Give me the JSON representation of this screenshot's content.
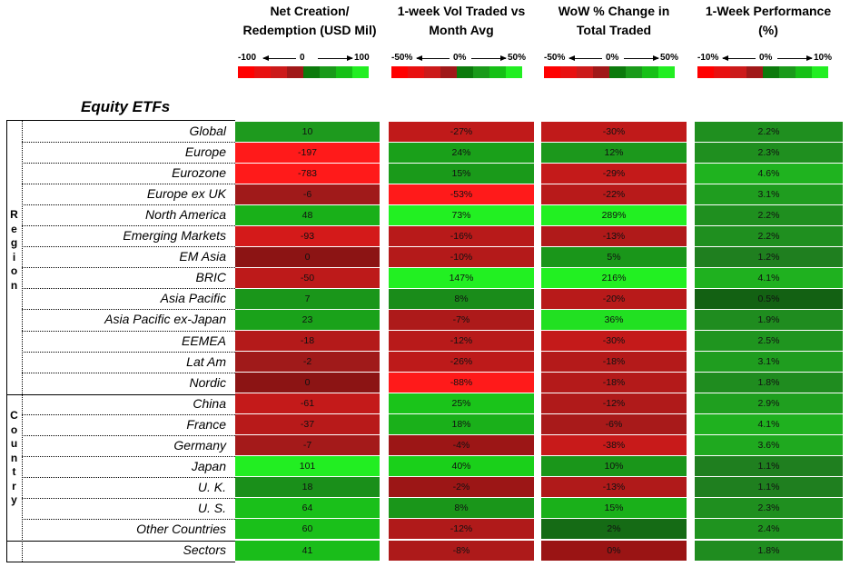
{
  "columns": [
    {
      "header_line1": "Net Creation/",
      "header_line2": "Redemption (USD Mil)",
      "legend_left": "-100",
      "legend_mid": "0",
      "legend_right": "100"
    },
    {
      "header_line1": "1-week Vol Traded vs",
      "header_line2": "Month Avg",
      "legend_left": "-50%",
      "legend_mid": "0%",
      "legend_right": "50%"
    },
    {
      "header_line1": "WoW % Change in",
      "header_line2": "Total Traded",
      "legend_left": "-50%",
      "legend_mid": "0%",
      "legend_right": "50%"
    },
    {
      "header_line1": "1-Week Performance",
      "header_line2": "(%)",
      "legend_left": "-10%",
      "legend_mid": "0%",
      "legend_right": "10%"
    }
  ],
  "legend_scale": [
    "#ff0000",
    "#e81010",
    "#cc1a1a",
    "#a01818",
    "#0c7a0c",
    "#1a9a1a",
    "#16c016",
    "#22ee22"
  ],
  "section_title": "Equity ETFs",
  "groups": [
    {
      "label_letters": [
        "R",
        "e",
        "g",
        "i",
        "o",
        "n"
      ]
    },
    {
      "label_letters": [
        "C",
        "o",
        "u",
        "n",
        "t",
        "r",
        "y"
      ]
    }
  ],
  "rows": [
    {
      "name": "Global",
      "values": [
        "10",
        "-27%",
        "-30%",
        "2.2%"
      ],
      "colors": [
        "#1e9a1e",
        "#c01a1a",
        "#c01a1a",
        "#1f8f1f"
      ]
    },
    {
      "name": "Europe",
      "values": [
        "-197",
        "24%",
        "12%",
        "2.3%"
      ],
      "colors": [
        "#ff1a1a",
        "#1aa01a",
        "#1c981c",
        "#1f8f1f"
      ]
    },
    {
      "name": "Eurozone",
      "values": [
        "-783",
        "15%",
        "-29%",
        "4.6%"
      ],
      "colors": [
        "#ff1a1a",
        "#1a9a1a",
        "#c41a1a",
        "#1fb31f"
      ]
    },
    {
      "name": "Europe ex UK",
      "values": [
        "-6",
        "-53%",
        "-22%",
        "3.1%"
      ],
      "colors": [
        "#a01a1a",
        "#ff1a1a",
        "#b81a1a",
        "#1f9d1f"
      ]
    },
    {
      "name": "North America",
      "values": [
        "48",
        "73%",
        "289%",
        "2.2%"
      ],
      "colors": [
        "#19b019",
        "#22f022",
        "#22f022",
        "#1f8f1f"
      ]
    },
    {
      "name": "Emerging Markets",
      "values": [
        "-93",
        "-16%",
        "-13%",
        "2.2%"
      ],
      "colors": [
        "#d41a1a",
        "#b81a1a",
        "#b01a1a",
        "#1f8f1f"
      ]
    },
    {
      "name": "EM Asia",
      "values": [
        "0",
        "-10%",
        "5%",
        "1.2%"
      ],
      "colors": [
        "#8c1414",
        "#b41a1a",
        "#1a961a",
        "#1f7f1f"
      ]
    },
    {
      "name": "BRIC",
      "values": [
        "-50",
        "147%",
        "216%",
        "4.1%"
      ],
      "colors": [
        "#bd1a1a",
        "#22f022",
        "#22f022",
        "#1fb11f"
      ]
    },
    {
      "name": "Asia Pacific",
      "values": [
        "7",
        "8%",
        "-20%",
        "0.5%"
      ],
      "colors": [
        "#1a961a",
        "#1a8c1a",
        "#b81a1a",
        "#136113"
      ]
    },
    {
      "name": "Asia Pacific ex-Japan",
      "values": [
        "23",
        "-7%",
        "36%",
        "1.9%"
      ],
      "colors": [
        "#1aa21a",
        "#ad1a1a",
        "#22e022",
        "#1f8c1f"
      ]
    },
    {
      "name": "EEMEA",
      "values": [
        "-18",
        "-12%",
        "-30%",
        "2.5%"
      ],
      "colors": [
        "#b41a1a",
        "#b81a1a",
        "#c41a1a",
        "#1f951f"
      ]
    },
    {
      "name": "Lat Am",
      "values": [
        "-2",
        "-26%",
        "-18%",
        "3.1%"
      ],
      "colors": [
        "#a01a1a",
        "#bd1a1a",
        "#b41a1a",
        "#1f9d1f"
      ]
    },
    {
      "name": "Nordic",
      "values": [
        "0",
        "-88%",
        "-18%",
        "1.8%"
      ],
      "colors": [
        "#8c1414",
        "#ff1a1a",
        "#b41a1a",
        "#1f8c1f"
      ]
    },
    {
      "name": "China",
      "values": [
        "-61",
        "25%",
        "-12%",
        "2.9%"
      ],
      "colors": [
        "#c41a1a",
        "#1ac41a",
        "#b01a1a",
        "#1f9f1f"
      ]
    },
    {
      "name": "France",
      "values": [
        "-37",
        "18%",
        "-6%",
        "4.1%"
      ],
      "colors": [
        "#b81a1a",
        "#1ab01a",
        "#a81a1a",
        "#1fb11f"
      ]
    },
    {
      "name": "Germany",
      "values": [
        "-7",
        "-4%",
        "-38%",
        "3.6%"
      ],
      "colors": [
        "#a41a1a",
        "#9c1616",
        "#c81a1a",
        "#1fa91f"
      ]
    },
    {
      "name": "Japan",
      "values": [
        "101",
        "40%",
        "10%",
        "1.1%"
      ],
      "colors": [
        "#22ee22",
        "#1ad01a",
        "#1a961a",
        "#1f7f1f"
      ]
    },
    {
      "name": "U. K.",
      "values": [
        "18",
        "-2%",
        "-13%",
        "1.1%"
      ],
      "colors": [
        "#1a8f1a",
        "#9c1616",
        "#b01a1a",
        "#1f7f1f"
      ]
    },
    {
      "name": "U. S.",
      "values": [
        "64",
        "8%",
        "15%",
        "2.3%"
      ],
      "colors": [
        "#1ac01a",
        "#1a961a",
        "#1ab01a",
        "#1f8f1f"
      ]
    },
    {
      "name": "Other Countries",
      "values": [
        "60",
        "-12%",
        "2%",
        "2.4%"
      ],
      "colors": [
        "#1ac01a",
        "#b01a1a",
        "#156b15",
        "#1f931f"
      ]
    },
    {
      "name": "Sectors",
      "values": [
        "41",
        "-8%",
        "0%",
        "1.8%"
      ],
      "colors": [
        "#1abd1a",
        "#ad1a1a",
        "#9a1414",
        "#1f8c1f"
      ]
    }
  ]
}
